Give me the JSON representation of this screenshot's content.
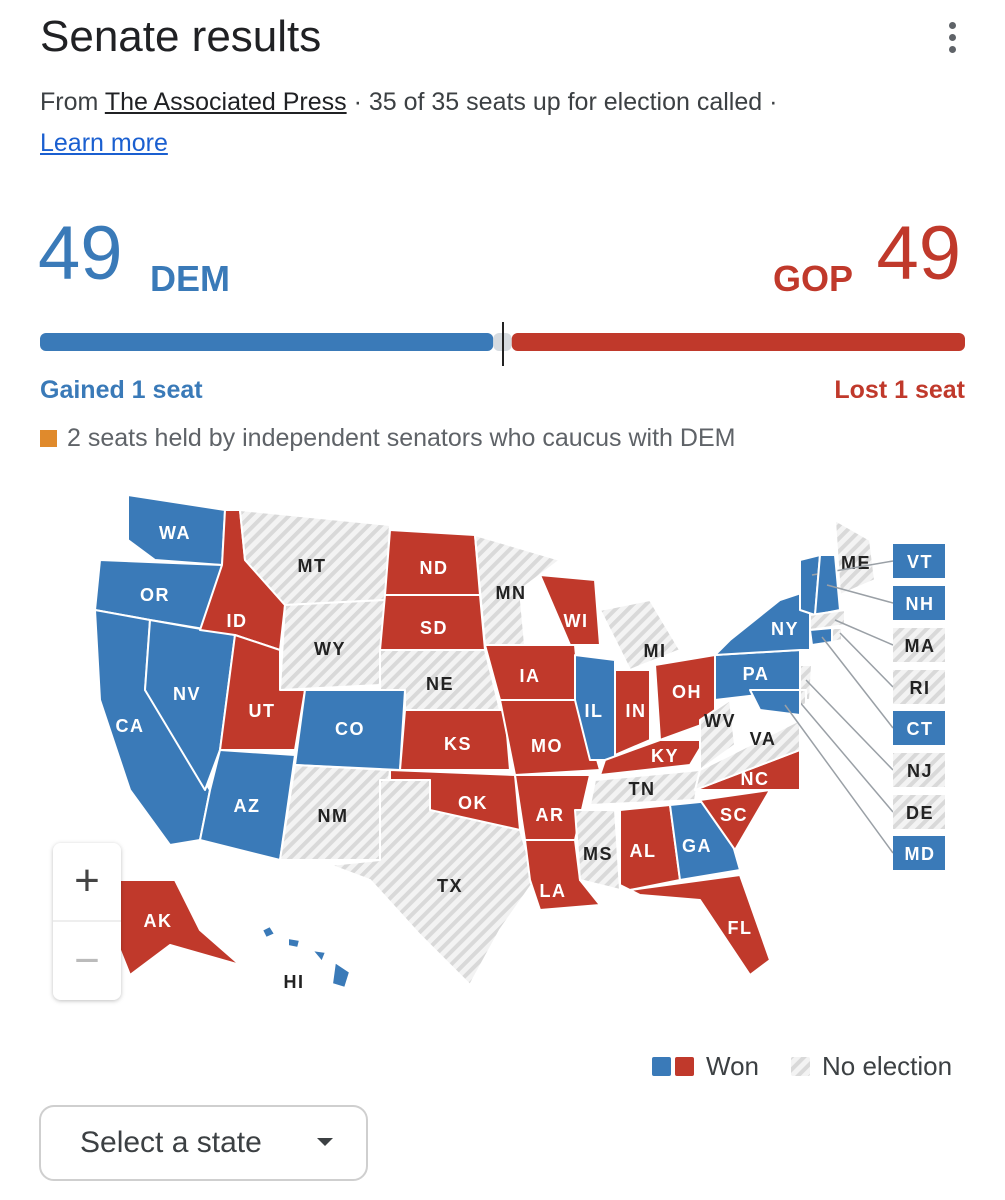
{
  "header": {
    "title": "Senate results",
    "source": {
      "prefix": "From",
      "link": "The Associated Press",
      "separator": "·",
      "status": "35 of 35 seats up for election called",
      "learn_more": "Learn more"
    }
  },
  "tally": {
    "dem": {
      "seats": 49,
      "party": "DEM",
      "change": "Gained 1 seat",
      "color": "#3a7ab8"
    },
    "gop": {
      "party": "GOP",
      "seats": 49,
      "change": "Lost 1 seat",
      "color": "#c0392b"
    },
    "independents": {
      "seats": 2,
      "text": "seats held by independent senators who caucus with DEM",
      "color": "#e08a2c",
      "bar_color": "#d6dbe0"
    }
  },
  "map": {
    "states": [
      {
        "label": "WA",
        "color": "#3a7ab8"
      },
      {
        "label": "OR",
        "color": "#3a7ab8"
      },
      {
        "label": "CA",
        "color": "#3a7ab8"
      },
      {
        "label": "NV",
        "color": "#3a7ab8"
      },
      {
        "label": "ID",
        "color": "#c0392b"
      },
      {
        "label": "MT",
        "color": "#e2e2e2"
      },
      {
        "label": "WY",
        "color": "#e2e2e2"
      },
      {
        "label": "UT",
        "color": "#c0392b"
      },
      {
        "label": "CO",
        "color": "#3a7ab8"
      },
      {
        "label": "AZ",
        "color": "#3a7ab8"
      },
      {
        "label": "NM",
        "color": "#e2e2e2"
      },
      {
        "label": "ND",
        "color": "#c0392b"
      },
      {
        "label": "SD",
        "color": "#c0392b"
      },
      {
        "label": "NE",
        "color": "#e2e2e2"
      },
      {
        "label": "KS",
        "color": "#c0392b"
      },
      {
        "label": "OK",
        "color": "#c0392b"
      },
      {
        "label": "TX",
        "color": "#e2e2e2"
      },
      {
        "label": "MN",
        "color": "#e2e2e2"
      },
      {
        "label": "IA",
        "color": "#c0392b"
      },
      {
        "label": "MO",
        "color": "#c0392b"
      },
      {
        "label": "AR",
        "color": "#c0392b"
      },
      {
        "label": "LA",
        "color": "#c0392b"
      },
      {
        "label": "WI",
        "color": "#c0392b"
      },
      {
        "label": "IL",
        "color": "#3a7ab8"
      },
      {
        "label": "MI",
        "color": "#e2e2e2"
      },
      {
        "label": "IN",
        "color": "#c0392b"
      },
      {
        "label": "OH",
        "color": "#c0392b"
      },
      {
        "label": "KY",
        "color": "#c0392b"
      },
      {
        "label": "TN",
        "color": "#e2e2e2"
      },
      {
        "label": "MS",
        "color": "#e2e2e2"
      },
      {
        "label": "AL",
        "color": "#c0392b"
      },
      {
        "label": "GA",
        "color": "#3a7ab8"
      },
      {
        "label": "FL",
        "color": "#c0392b"
      },
      {
        "label": "SC",
        "color": "#c0392b"
      },
      {
        "label": "NC",
        "color": "#c0392b"
      },
      {
        "label": "VA",
        "color": "#e2e2e2"
      },
      {
        "label": "WV",
        "color": "#e2e2e2"
      },
      {
        "label": "PA",
        "color": "#3a7ab8"
      },
      {
        "label": "NY",
        "color": "#3a7ab8"
      },
      {
        "label": "ME",
        "color": "#e2e2e2"
      },
      {
        "label": "AK",
        "color": "#c0392b"
      },
      {
        "label": "HI",
        "color": "#3a7ab8"
      },
      {
        "label": "VT",
        "color": "#3a7ab8"
      },
      {
        "label": "NH",
        "color": "#3a7ab8"
      },
      {
        "label": "MA",
        "color": "#e2e2e2"
      },
      {
        "label": "RI",
        "color": "#e2e2e2"
      },
      {
        "label": "CT",
        "color": "#3a7ab8"
      },
      {
        "label": "NJ",
        "color": "#e2e2e2"
      },
      {
        "label": "DE",
        "color": "#e2e2e2"
      },
      {
        "label": "MD",
        "color": "#3a7ab8"
      }
    ],
    "zoom_in": "+",
    "zoom_out": "−"
  },
  "legend": [
    {
      "label": "Won",
      "colors": [
        "#3a7ab8",
        "#c0392b"
      ]
    },
    {
      "label": "No election",
      "colors": [
        "#e2e2e2"
      ]
    }
  ],
  "select": {
    "label": "Select a state"
  }
}
